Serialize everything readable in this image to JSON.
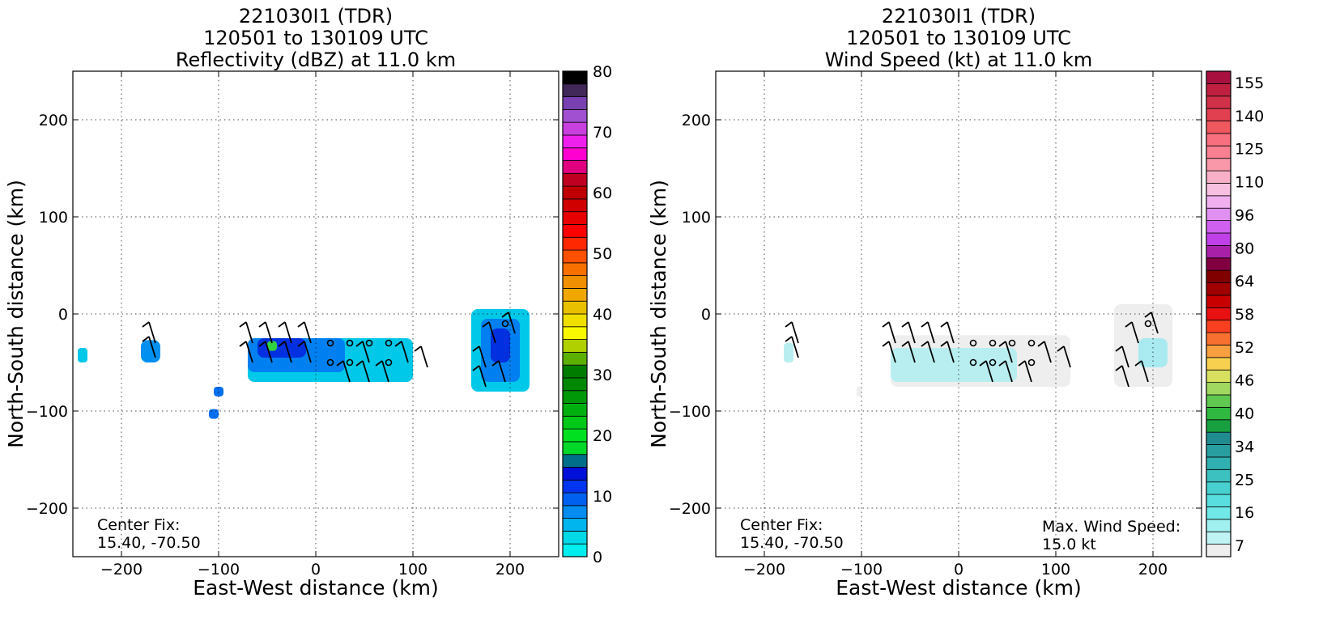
{
  "chart_data": [
    {
      "type": "heatmap",
      "title_lines": [
        "221030I1 (TDR)",
        "120501 to 130109 UTC",
        "Reflectivity (dBZ) at 11.0 km"
      ],
      "xlabel": "East-West distance (km)",
      "ylabel": "North-South distance (km)",
      "xlim": [
        -250,
        250
      ],
      "ylim": [
        -250,
        250
      ],
      "xticks": [
        -200,
        -100,
        0,
        100,
        200
      ],
      "yticks": [
        200,
        100,
        0,
        -100,
        -200
      ],
      "xtick_labels": [
        "−200",
        "−100",
        "0",
        "100",
        "200"
      ],
      "ytick_labels": [
        "200",
        "100",
        "0",
        "−100",
        "−200"
      ],
      "grid": true,
      "annotations": {
        "center_fix_label": "Center Fix:",
        "center_fix_value": "15.40, -70.50"
      },
      "colorbar": {
        "min": 0,
        "max": 80,
        "ticks": [
          "80",
          "70",
          "60",
          "50",
          "40",
          "30",
          "20",
          "10",
          "0"
        ],
        "colors": [
          "#00eeee",
          "#00d8e8",
          "#00b4ee",
          "#008cf0",
          "#0060f0",
          "#0034ee",
          "#0010d8",
          "#00708a",
          "#00d828",
          "#00e020",
          "#00c818",
          "#00b010",
          "#009808",
          "#008800",
          "#007c00",
          "#5cb000",
          "#b0d000",
          "#f8f800",
          "#f0e000",
          "#e8c000",
          "#f0a800",
          "#f09000",
          "#f87000",
          "#ff5000",
          "#ff2800",
          "#ff0000",
          "#e80000",
          "#d00000",
          "#c00000",
          "#c00020",
          "#e00080",
          "#ff00d0",
          "#ee20ee",
          "#c840e0",
          "#a050d0",
          "#7840b0",
          "#402858",
          "#000000"
        ]
      },
      "echo_regions": [
        {
          "x": [
            -70,
            100
          ],
          "y": [
            -70,
            -25
          ],
          "shade": "#00c8e8"
        },
        {
          "x": [
            -70,
            30
          ],
          "y": [
            -60,
            -25
          ],
          "shade": "#0080f0"
        },
        {
          "x": [
            -60,
            -10
          ],
          "y": [
            -45,
            -25
          ],
          "shade": "#0030e0"
        },
        {
          "x": [
            -50,
            -40
          ],
          "y": [
            -38,
            -28
          ],
          "shade": "#30d040"
        },
        {
          "x": [
            160,
            220
          ],
          "y": [
            -80,
            5
          ],
          "shade": "#00c8e8"
        },
        {
          "x": [
            170,
            210
          ],
          "y": [
            -70,
            -5
          ],
          "shade": "#0080f0"
        },
        {
          "x": [
            180,
            200
          ],
          "y": [
            -50,
            -15
          ],
          "shade": "#0030e0"
        },
        {
          "x": [
            -180,
            -160
          ],
          "y": [
            -50,
            -27
          ],
          "shade": "#0090f0"
        },
        {
          "x": [
            -245,
            -235
          ],
          "y": [
            -50,
            -35
          ],
          "shade": "#00c8e8"
        },
        {
          "x": [
            -110,
            -100
          ],
          "y": [
            -108,
            -98
          ],
          "shade": "#0070f0"
        },
        {
          "x": [
            -105,
            -95
          ],
          "y": [
            -85,
            -75
          ],
          "shade": "#0070f0"
        }
      ]
    },
    {
      "type": "heatmap",
      "title_lines": [
        "221030I1 (TDR)",
        "120501 to 130109 UTC",
        "Wind Speed (kt) at 11.0 km"
      ],
      "xlabel": "East-West distance (km)",
      "ylabel": "North-South distance (km)",
      "xlim": [
        -250,
        250
      ],
      "ylim": [
        -250,
        250
      ],
      "xticks": [
        -200,
        -100,
        0,
        100,
        200
      ],
      "yticks": [
        200,
        100,
        0,
        -100,
        -200
      ],
      "xtick_labels": [
        "−200",
        "−100",
        "0",
        "100",
        "200"
      ],
      "ytick_labels": [
        "200",
        "100",
        "0",
        "−100",
        "−200"
      ],
      "grid": true,
      "annotations": {
        "center_fix_label": "Center Fix:",
        "center_fix_value": "15.40, -70.50",
        "max_wind_label": "Max. Wind Speed:",
        "max_wind_value": "15.0 kt"
      },
      "colorbar": {
        "min": 0,
        "max": 160,
        "ticks": [
          "155",
          "140",
          "125",
          "110",
          "96",
          "80",
          "64",
          "58",
          "52",
          "46",
          "40",
          "34",
          "25",
          "16",
          "7"
        ],
        "colors": [
          "#eeeeee",
          "#c0f4f4",
          "#a0f0f0",
          "#70e8e8",
          "#58dede",
          "#48d0d0",
          "#3cc0c0",
          "#30b0b0",
          "#289ea0",
          "#208c90",
          "#18a040",
          "#30b840",
          "#60c850",
          "#a0d860",
          "#d8e060",
          "#f8d050",
          "#f8a040",
          "#f87030",
          "#f84020",
          "#e81010",
          "#c80000",
          "#a00000",
          "#800000",
          "#800040",
          "#a820a8",
          "#c040e8",
          "#d060f0",
          "#e090f0",
          "#f0b0f0",
          "#f8c0e0",
          "#f8b0c8",
          "#f898a8",
          "#f88090",
          "#f87080",
          "#f05860",
          "#e04050",
          "#d03048",
          "#c02040",
          "#a81040"
        ]
      },
      "echo_regions": [
        {
          "x": [
            -70,
            115
          ],
          "y": [
            -75,
            -22
          ],
          "shade": "#eeeeee"
        },
        {
          "x": [
            -70,
            60
          ],
          "y": [
            -70,
            -35
          ],
          "shade": "#b8eef0"
        },
        {
          "x": [
            160,
            220
          ],
          "y": [
            -75,
            10
          ],
          "shade": "#eeeeee"
        },
        {
          "x": [
            185,
            215
          ],
          "y": [
            -55,
            -25
          ],
          "shade": "#a8eaf0"
        },
        {
          "x": [
            -180,
            -170
          ],
          "y": [
            -50,
            -30
          ],
          "shade": "#b8eef0"
        },
        {
          "x": [
            -105,
            -100
          ],
          "y": [
            -85,
            -75
          ],
          "shade": "#eeeeee"
        }
      ]
    }
  ],
  "wind_barbs": [
    {
      "x": -65,
      "y": -30
    },
    {
      "x": -45,
      "y": -30
    },
    {
      "x": -25,
      "y": -30
    },
    {
      "x": -5,
      "y": -30
    },
    {
      "x": 15,
      "y": -30,
      "calm": true
    },
    {
      "x": 35,
      "y": -30,
      "calm": true
    },
    {
      "x": 55,
      "y": -30,
      "calm": true
    },
    {
      "x": 75,
      "y": -30,
      "calm": true
    },
    {
      "x": -65,
      "y": -50
    },
    {
      "x": -45,
      "y": -50
    },
    {
      "x": -25,
      "y": -50
    },
    {
      "x": -5,
      "y": -50
    },
    {
      "x": 15,
      "y": -50,
      "calm": true
    },
    {
      "x": 35,
      "y": -50,
      "calm": true
    },
    {
      "x": 55,
      "y": -50
    },
    {
      "x": 75,
      "y": -50,
      "calm": true
    },
    {
      "x": 95,
      "y": -50
    },
    {
      "x": 115,
      "y": -55
    },
    {
      "x": 35,
      "y": -70
    },
    {
      "x": 55,
      "y": -70
    },
    {
      "x": 75,
      "y": -70
    },
    {
      "x": -165,
      "y": -30
    },
    {
      "x": -165,
      "y": -45
    },
    {
      "x": 175,
      "y": -55
    },
    {
      "x": 185,
      "y": -30
    },
    {
      "x": 195,
      "y": -10,
      "calm": true
    },
    {
      "x": 205,
      "y": -20
    },
    {
      "x": 175,
      "y": -75
    },
    {
      "x": 195,
      "y": -70
    }
  ]
}
